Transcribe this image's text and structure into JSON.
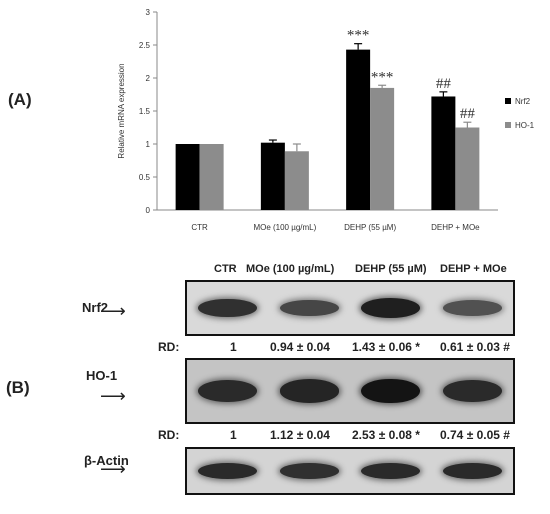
{
  "chart_data": {
    "type": "bar",
    "panel_label": "(A)",
    "ylabel": "Relative mRNA expression",
    "ylim": [
      0,
      3
    ],
    "yticks": [
      "0",
      "0.5",
      "1",
      "1.5",
      "2",
      "2.5",
      "3"
    ],
    "categories": [
      "CTR",
      "MOe (100 µg/mL)",
      "DEHP (55 µM)",
      "DEHP  + MOe"
    ],
    "series": [
      {
        "name": "Nrf2",
        "color": "#000000",
        "values": [
          1.0,
          1.02,
          2.43,
          1.72
        ],
        "errors": [
          0.0,
          0.04,
          0.09,
          0.07
        ],
        "annotations": [
          "",
          "",
          "***",
          "##"
        ]
      },
      {
        "name": "HO-1",
        "color": "#8c8c8c",
        "values": [
          1.0,
          0.89,
          1.85,
          1.25
        ],
        "errors": [
          0.0,
          0.11,
          0.04,
          0.08
        ],
        "annotations": [
          "",
          "",
          "***",
          "##"
        ]
      }
    ],
    "legend_position": "right",
    "grid": false
  },
  "blot": {
    "panel_label": "(B)",
    "lane_headers": [
      "CTR",
      "MOe (100 µg/mL)",
      "DEHP (55 µM)",
      "DEHP + MOe"
    ],
    "rows": [
      {
        "protein": "Nrf2",
        "band_intensity": [
          0.75,
          0.55,
          0.9,
          0.45
        ],
        "background": "#d9d9d9"
      },
      {
        "protein": "HO-1",
        "band_intensity": [
          0.8,
          0.85,
          1.0,
          0.8
        ],
        "background": "#c4c4c4"
      },
      {
        "protein": "β-Actin",
        "band_intensity": [
          0.8,
          0.75,
          0.8,
          0.8
        ],
        "background": "#d4d4d4"
      }
    ],
    "rd_rows": [
      {
        "label": "RD:",
        "values": [
          "1",
          "0.94 ± 0.04",
          "1.43 ± 0.06 *",
          "0.61 ± 0.03 #"
        ]
      },
      {
        "label": "RD:",
        "values": [
          "1",
          "1.12 ± 0.04",
          "2.53 ± 0.08 *",
          "0.74 ± 0.05 #"
        ]
      }
    ]
  }
}
